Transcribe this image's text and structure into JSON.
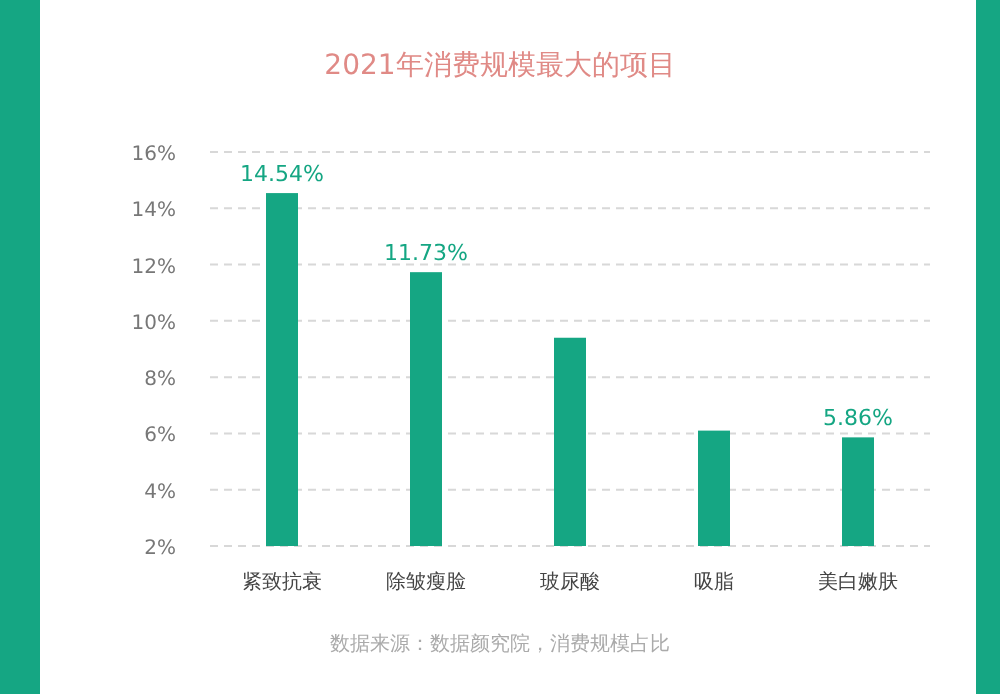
{
  "chart_data": {
    "type": "bar",
    "title": "2021年消费规模最大的项目",
    "categories": [
      "紧致抗衰",
      "除皱瘦脸",
      "玻尿酸",
      "吸脂",
      "美白嫩肤"
    ],
    "values": [
      14.54,
      11.73,
      9.4,
      6.1,
      5.86
    ],
    "value_labels": [
      "14.54%",
      "11.73%",
      null,
      null,
      "5.86%"
    ],
    "color": "#15a683",
    "ylim": [
      2,
      16
    ],
    "yticks": [
      {
        "value": 2,
        "label": "2%"
      },
      {
        "value": 4,
        "label": "4%"
      },
      {
        "value": 6,
        "label": "6%"
      },
      {
        "value": 8,
        "label": "8%"
      },
      {
        "value": 10,
        "label": "10%"
      },
      {
        "value": 12,
        "label": "12%"
      },
      {
        "value": 14,
        "label": "14%"
      },
      {
        "value": 16,
        "label": "16%"
      }
    ],
    "grid": "y",
    "annotations": [
      "数据来源：数据颜究院，消费规模占比"
    ]
  }
}
